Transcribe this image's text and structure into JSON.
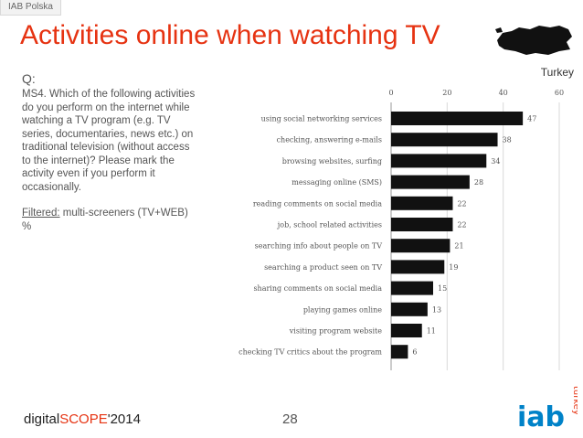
{
  "header": {
    "tag": "IAB Polska",
    "title": "Activities online when watching TV",
    "country": "Turkey"
  },
  "question": {
    "label": "Q:",
    "text": "MS4. Which of the following activities do you perform on the internet while watching a TV program (e.g. TV series, documentaries, news etc.) on traditional television (without access to the internet)? Please mark the activity even if you perform it occasionally.",
    "filter_label": "Filtered:",
    "filter_value": "multi-screeners (TV+WEB)",
    "unit": "%"
  },
  "chart_data": {
    "type": "bar",
    "orientation": "horizontal",
    "categories": [
      "using social networking services",
      "checking, answering e-mails",
      "browsing websites, surfing",
      "messaging online (SMS)",
      "reading comments on social media",
      "job, school related activities",
      "searching info about people on TV",
      "searching a product seen on TV",
      "sharing comments on social media",
      "playing games online",
      "visiting program website",
      "checking TV critics about the program"
    ],
    "values": [
      47,
      38,
      34,
      28,
      22,
      22,
      21,
      19,
      15,
      13,
      11,
      6
    ],
    "xlim": [
      0,
      60
    ],
    "xticks": [
      0,
      20,
      40,
      60
    ],
    "axis_position": "top",
    "grid": true,
    "bar_color": "#111111",
    "title": "",
    "xlabel": "",
    "ylabel": ""
  },
  "footer": {
    "brand_prefix": "digital",
    "brand_highlight": "SCOPE",
    "brand_suffix": "'2014",
    "page": "28",
    "logo_text": "iab",
    "logo_sub": "turkey"
  },
  "colors": {
    "accent": "#e63312",
    "logo_blue": "#0082c8"
  }
}
